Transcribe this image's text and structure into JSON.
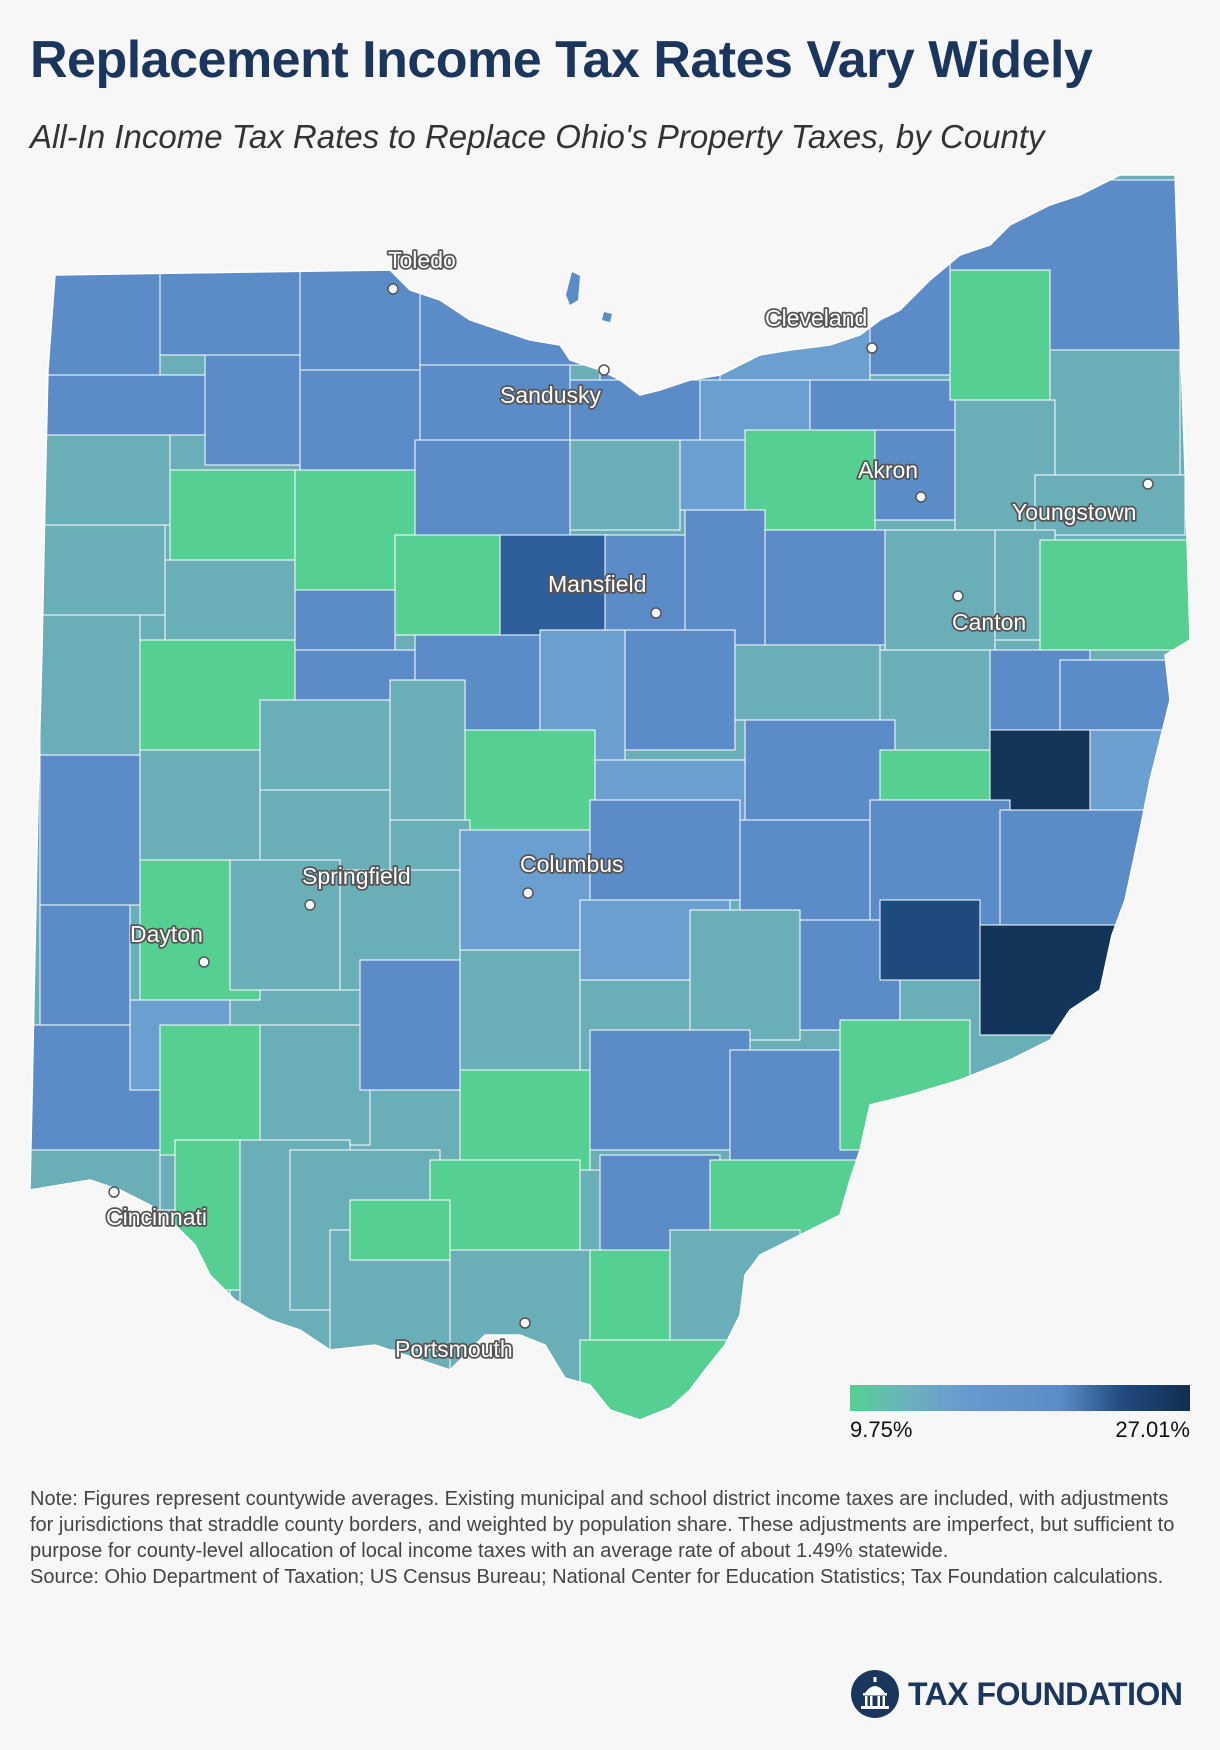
{
  "title": "Replacement Income Tax Rates Vary Widely",
  "subtitle": "All-In Income Tax Rates to Replace Ohio's Property Taxes, by County",
  "legend": {
    "min_label": "9.75%",
    "max_label": "27.01%",
    "min_value": 9.75,
    "max_value": 27.01,
    "colors": [
      "#56cf92",
      "#6cb0c0",
      "#6699d0",
      "#5b8cc8",
      "#214a80",
      "#112e50"
    ]
  },
  "cities": [
    {
      "name": "Toledo"
    },
    {
      "name": "Cleveland"
    },
    {
      "name": "Sandusky"
    },
    {
      "name": "Akron"
    },
    {
      "name": "Youngstown"
    },
    {
      "name": "Mansfield"
    },
    {
      "name": "Canton"
    },
    {
      "name": "Columbus"
    },
    {
      "name": "Springfield"
    },
    {
      "name": "Dayton"
    },
    {
      "name": "Cincinnati"
    },
    {
      "name": "Portsmouth"
    }
  ],
  "note": {
    "text": "Note: Figures represent countywide averages. Existing municipal and school district income taxes are included, with adjustments for jurisdictions that straddle county borders, and weighted by population share. These adjustments are imperfect, but sufficient to purpose for county-level allocation of local income taxes with an average rate of about 1.49% statewide.",
    "source": "Source: Ohio Department of Taxation; US Census Bureau; National Center for Education Statistics; Tax Foundation calculations."
  },
  "brand": {
    "name": "TAX FOUNDATION",
    "logo_icon": "capitol-dome-icon",
    "color": "#1b365d"
  }
}
